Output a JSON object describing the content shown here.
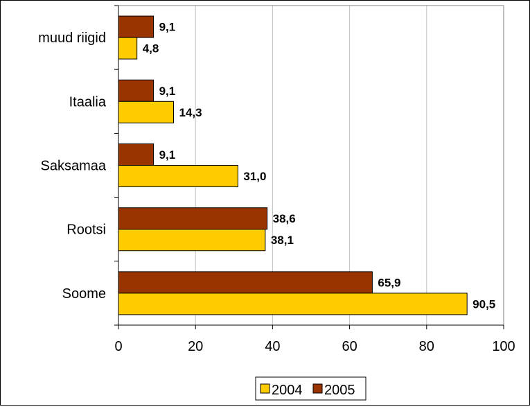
{
  "chart_data": {
    "type": "bar",
    "orientation": "horizontal",
    "categories": [
      "muud riigid",
      "Itaalia",
      "Saksamaa",
      "Rootsi",
      "Soome"
    ],
    "series": [
      {
        "name": "2005",
        "values": [
          9.1,
          9.1,
          9.1,
          38.6,
          65.9
        ],
        "labels": [
          "9,1",
          "9,1",
          "9,1",
          "38,6",
          "65,9"
        ],
        "color": "#993300"
      },
      {
        "name": "2004",
        "values": [
          4.8,
          14.3,
          31.0,
          38.1,
          90.5
        ],
        "labels": [
          "4,8",
          "14,3",
          "31,0",
          "38,1",
          "90,5"
        ],
        "color": "#FFCC00"
      }
    ],
    "xlim": [
      0,
      100
    ],
    "x_ticks": [
      "0",
      "20",
      "40",
      "60",
      "80",
      "100"
    ],
    "grid": "vertical",
    "legend": {
      "placement": "bottom",
      "entries": [
        {
          "label": "2004",
          "color": "#FFCC00"
        },
        {
          "label": "2005",
          "color": "#993300"
        }
      ]
    },
    "title": "",
    "xlabel": "",
    "ylabel": ""
  }
}
